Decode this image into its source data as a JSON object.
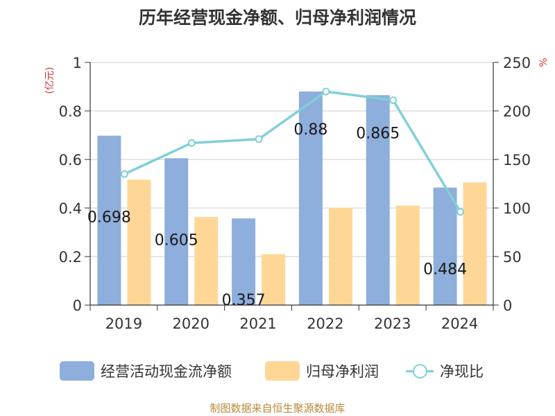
{
  "chart_data": {
    "type": "bar",
    "title": "历年经营现金净额、归母净利润情况",
    "categories": [
      "2019",
      "2020",
      "2021",
      "2022",
      "2023",
      "2024"
    ],
    "series": [
      {
        "name": "经营活动现金流净额",
        "kind": "bar",
        "axis": "left",
        "color": "#8eaedc",
        "values": [
          0.698,
          0.605,
          0.357,
          0.88,
          0.865,
          0.484
        ],
        "labels": [
          "0.698",
          "0.605",
          "0.357",
          "0.88",
          "0.865",
          "0.484"
        ]
      },
      {
        "name": "归母净利润",
        "kind": "bar",
        "axis": "left",
        "color": "#fed797",
        "values": [
          0.517,
          0.363,
          0.21,
          0.401,
          0.41,
          0.505
        ]
      },
      {
        "name": "净现比",
        "kind": "line",
        "axis": "right",
        "color": "#7fd0d6",
        "values": [
          135,
          167,
          171,
          220,
          211,
          96
        ]
      }
    ],
    "ylabel_left": "(亿元)",
    "ylabel_right": "%",
    "ylim_left": [
      0,
      1
    ],
    "ylim_right": [
      0,
      250
    ],
    "yticks_left": [
      "0",
      "0.2",
      "0.4",
      "0.6",
      "0.8",
      "1"
    ],
    "yticks_right": [
      "0",
      "50",
      "100",
      "150",
      "200",
      "250"
    ],
    "grid": true,
    "legend_position": "bottom"
  },
  "source": "制图数据来自恒生聚源数据库"
}
